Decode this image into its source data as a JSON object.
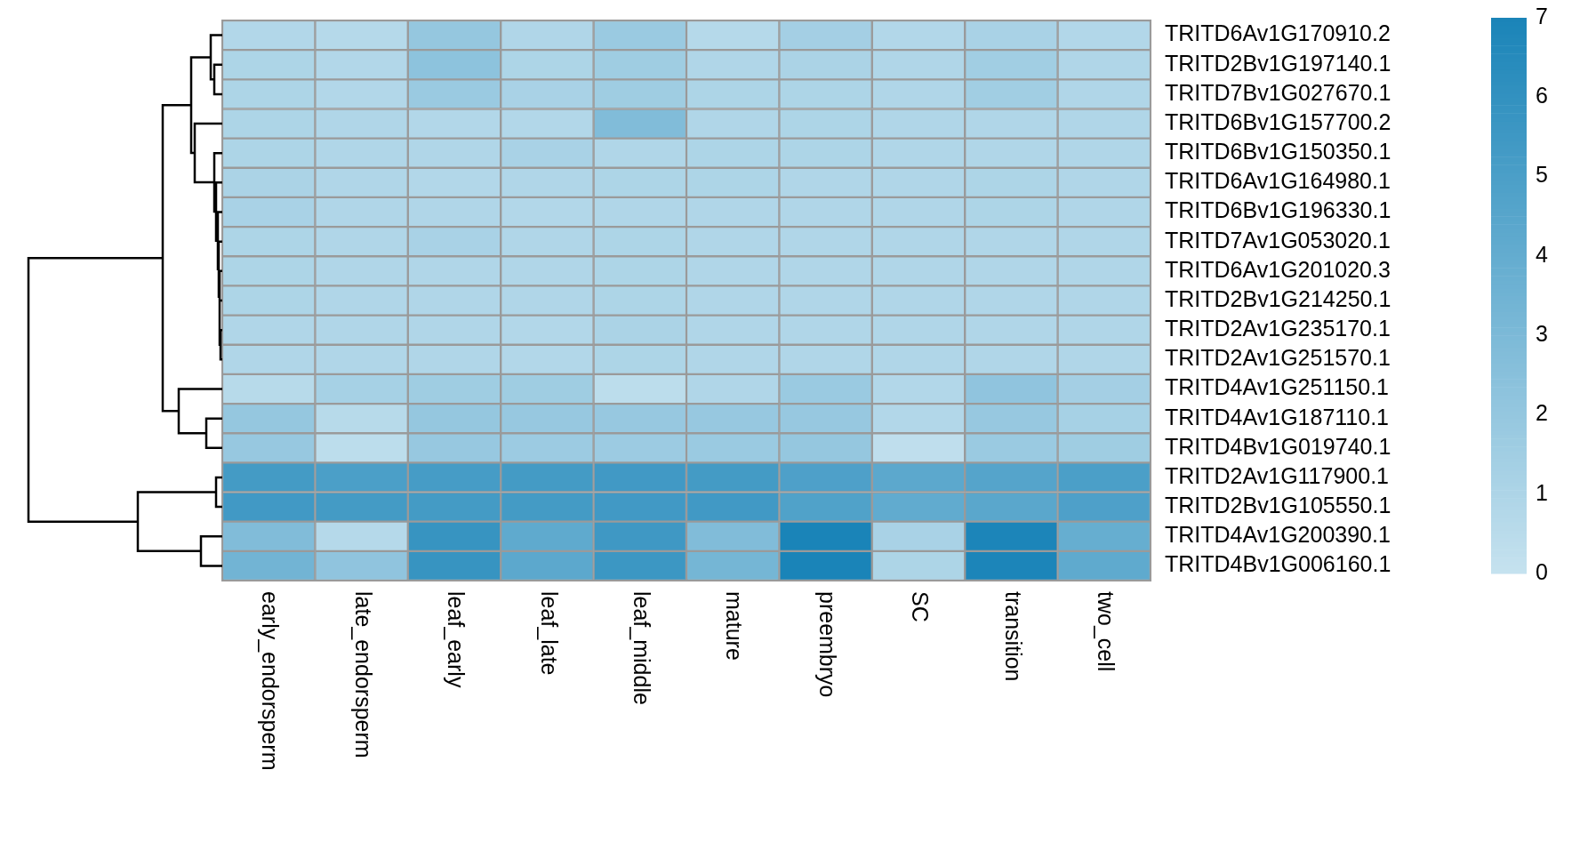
{
  "chart_data": {
    "type": "heatmap",
    "categories": [
      "early_endorsperm",
      "late_endorsperm",
      "leaf_early",
      "leaf_late",
      "leaf_middle",
      "mature",
      "preembryo",
      "SC",
      "transition",
      "two_cell"
    ],
    "y_categories": [
      "TRITD6Av1G170910.2",
      "TRITD2Bv1G197140.1",
      "TRITD7Bv1G027670.1",
      "TRITD6Bv1G157700.2",
      "TRITD6Bv1G150350.1",
      "TRITD6Av1G164980.1",
      "TRITD6Bv1G196330.1",
      "TRITD7Av1G053020.1",
      "TRITD6Av1G201020.3",
      "TRITD2Bv1G214250.1",
      "TRITD2Av1G235170.1",
      "TRITD2Av1G251570.1",
      "TRITD4Av1G251150.1",
      "TRITD4Av1G187110.1",
      "TRITD4Bv1G019740.1",
      "TRITD2Av1G117900.1",
      "TRITD2Bv1G105550.1",
      "TRITD4Av1G200390.1",
      "TRITD4Bv1G006160.1"
    ],
    "cells": [
      [
        0.8,
        0.7,
        2.0,
        0.9,
        1.8,
        0.7,
        1.4,
        0.8,
        1.2,
        0.8
      ],
      [
        1.0,
        0.8,
        2.3,
        1.0,
        1.6,
        0.9,
        1.1,
        0.9,
        1.5,
        0.9
      ],
      [
        1.0,
        0.8,
        1.8,
        1.2,
        1.6,
        1.0,
        1.0,
        0.9,
        1.5,
        0.9
      ],
      [
        1.0,
        0.9,
        0.8,
        0.8,
        2.8,
        0.9,
        1.0,
        0.9,
        0.9,
        0.9
      ],
      [
        1.0,
        0.9,
        0.9,
        1.2,
        0.9,
        1.0,
        1.0,
        0.9,
        0.9,
        0.9
      ],
      [
        1.1,
        0.9,
        0.8,
        0.9,
        1.0,
        1.0,
        0.9,
        0.9,
        1.0,
        0.9
      ],
      [
        1.2,
        0.9,
        0.9,
        0.8,
        0.9,
        0.9,
        0.9,
        0.9,
        1.0,
        0.9
      ],
      [
        1.0,
        0.9,
        1.2,
        0.9,
        1.0,
        0.9,
        0.9,
        0.9,
        0.9,
        0.9
      ],
      [
        1.0,
        0.9,
        0.9,
        0.9,
        1.0,
        0.9,
        0.9,
        0.9,
        0.9,
        0.9
      ],
      [
        1.0,
        0.9,
        0.9,
        0.9,
        1.0,
        0.9,
        0.9,
        0.9,
        0.9,
        0.9
      ],
      [
        0.9,
        0.9,
        0.9,
        0.8,
        1.1,
        0.9,
        0.9,
        0.9,
        0.9,
        0.9
      ],
      [
        0.9,
        0.9,
        0.9,
        0.8,
        1.0,
        0.9,
        0.9,
        0.9,
        0.9,
        0.9
      ],
      [
        0.6,
        1.3,
        1.6,
        1.6,
        0.4,
        0.9,
        1.8,
        0.8,
        2.2,
        1.4
      ],
      [
        2.0,
        0.6,
        2.0,
        1.9,
        1.9,
        1.9,
        1.9,
        0.8,
        1.9,
        1.3
      ],
      [
        1.9,
        0.4,
        1.9,
        1.7,
        1.7,
        1.8,
        2.0,
        0.3,
        1.8,
        1.6
      ],
      [
        5.3,
        5.0,
        5.2,
        5.3,
        5.4,
        5.3,
        4.9,
        4.3,
        4.6,
        5.0
      ],
      [
        5.4,
        5.3,
        5.3,
        5.3,
        5.4,
        5.4,
        4.8,
        4.1,
        4.4,
        4.9
      ],
      [
        2.8,
        0.7,
        5.8,
        4.2,
        5.5,
        2.8,
        7.0,
        1.2,
        6.9,
        3.9
      ],
      [
        3.4,
        2.2,
        5.8,
        4.3,
        5.6,
        3.3,
        7.0,
        1.0,
        6.9,
        4.2
      ]
    ],
    "clim": [
      0,
      7
    ],
    "cticks": [
      0,
      1,
      2,
      3,
      4,
      5,
      6,
      7
    ]
  }
}
